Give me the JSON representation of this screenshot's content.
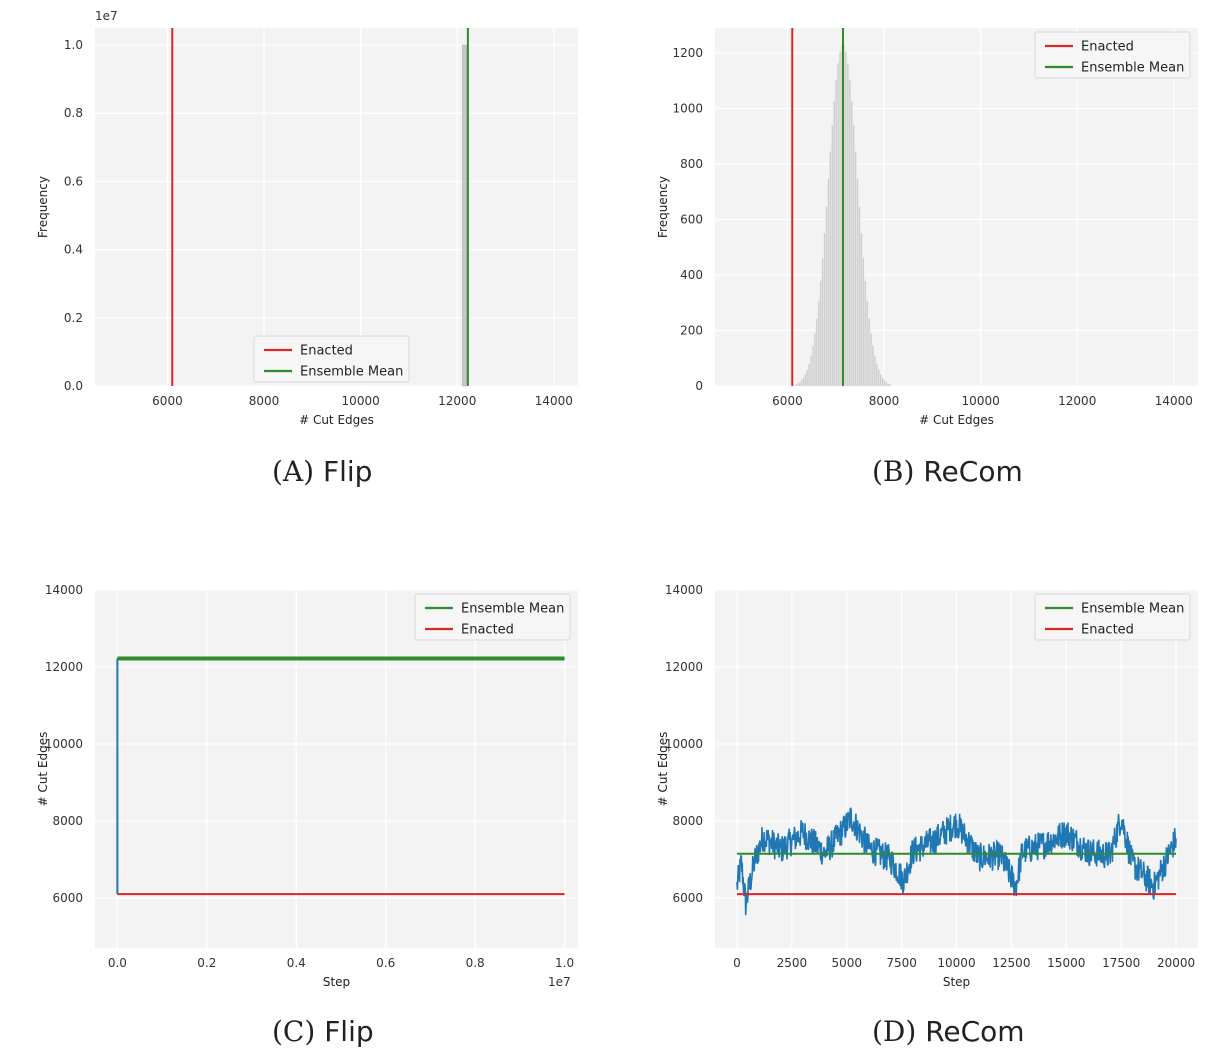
{
  "chart_data": [
    {
      "id": "A",
      "type": "histogram",
      "caption_label": "(A)",
      "caption_name": "Flip",
      "xlabel": "# Cut Edges",
      "ylabel": "Frequency",
      "xlim": [
        4500,
        14500
      ],
      "ylim": [
        0,
        1.05
      ],
      "y_offset_label": "1e7",
      "x_ticks": [
        6000,
        8000,
        10000,
        12000,
        14000
      ],
      "y_ticks": [
        0.0,
        0.2,
        0.4,
        0.6,
        0.8,
        1.0
      ],
      "y_tick_labels": [
        "0.0",
        "0.2",
        "0.4",
        "0.6",
        "0.8",
        "1.0"
      ],
      "bins": [
        {
          "x": 12150,
          "width": 90,
          "value": 1.0
        }
      ],
      "vlines": [
        {
          "name": "Enacted",
          "x": 6100,
          "color": "#d62728"
        },
        {
          "name": "Ensemble Mean",
          "x": 12220,
          "color": "#2e8b2e"
        }
      ],
      "legend": {
        "position": "lower-center",
        "entries": [
          {
            "label": "Enacted",
            "color": "#d62728"
          },
          {
            "label": "Ensemble Mean",
            "color": "#2e8b2e"
          }
        ]
      },
      "grid": true
    },
    {
      "id": "B",
      "type": "histogram",
      "caption_label": "(B)",
      "caption_name": "ReCom",
      "xlabel": "# Cut Edges",
      "ylabel": "Frequency",
      "xlim": [
        4500,
        14500
      ],
      "ylim": [
        0,
        1290
      ],
      "x_ticks": [
        6000,
        8000,
        10000,
        12000,
        14000
      ],
      "y_ticks": [
        0,
        200,
        400,
        600,
        800,
        1000,
        1200
      ],
      "y_tick_labels": [
        "0",
        "200",
        "400",
        "600",
        "800",
        "1000",
        "1200"
      ],
      "hist_normal": {
        "mean": 7150,
        "sd": 300,
        "peak": 1230,
        "x_min": 6150,
        "x_max": 8150,
        "bin_width": 40
      },
      "vlines": [
        {
          "name": "Enacted",
          "x": 6100,
          "color": "#d62728"
        },
        {
          "name": "Ensemble Mean",
          "x": 7150,
          "color": "#2e8b2e"
        }
      ],
      "legend": {
        "position": "top-right",
        "entries": [
          {
            "label": "Enacted",
            "color": "#d62728"
          },
          {
            "label": "Ensemble Mean",
            "color": "#2e8b2e"
          }
        ]
      },
      "grid": true
    },
    {
      "id": "C",
      "type": "line",
      "caption_label": "(C)",
      "caption_name": "Flip",
      "xlabel": "Step",
      "ylabel": "# Cut Edges",
      "xlim": [
        -0.05,
        1.03
      ],
      "ylim": [
        4700,
        14000
      ],
      "x_offset_label": "1e7",
      "x_ticks": [
        0.0,
        0.2,
        0.4,
        0.6,
        0.8,
        1.0
      ],
      "x_tick_labels": [
        "0.0",
        "0.2",
        "0.4",
        "0.6",
        "0.8",
        "1.0"
      ],
      "y_ticks": [
        6000,
        8000,
        10000,
        12000,
        14000
      ],
      "y_tick_labels": [
        "6000",
        "8000",
        "10000",
        "12000",
        "14000"
      ],
      "series": [
        {
          "name": "",
          "color": "#1f77b4",
          "x": [
            0.0,
            0.0,
            0.003,
            1.0
          ],
          "y": [
            6100,
            12200,
            12220,
            12220
          ]
        }
      ],
      "hlines": [
        {
          "name": "Ensemble Mean",
          "y": 12220,
          "x_range": [
            0.0,
            1.0
          ],
          "color": "#2e8b2e"
        },
        {
          "name": "Enacted",
          "y": 6100,
          "x_range": [
            0.0,
            1.0
          ],
          "color": "#d62728"
        }
      ],
      "legend": {
        "position": "top-right",
        "entries": [
          {
            "label": "Ensemble Mean",
            "color": "#2e8b2e"
          },
          {
            "label": "Enacted",
            "color": "#d62728"
          }
        ]
      },
      "grid": true
    },
    {
      "id": "D",
      "type": "line",
      "caption_label": "(D)",
      "caption_name": "ReCom",
      "xlabel": "Step",
      "ylabel": "# Cut Edges",
      "xlim": [
        -1000,
        21000
      ],
      "ylim": [
        4700,
        14000
      ],
      "x_ticks": [
        0,
        2500,
        5000,
        7500,
        10000,
        12500,
        15000,
        17500,
        20000
      ],
      "x_tick_labels": [
        "0",
        "2500",
        "5000",
        "7500",
        "10000",
        "12500",
        "15000",
        "17500",
        "20000"
      ],
      "y_ticks": [
        6000,
        8000,
        10000,
        12000,
        14000
      ],
      "y_tick_labels": [
        "6000",
        "8000",
        "10000",
        "12000",
        "14000"
      ],
      "series": [
        {
          "name": "",
          "color": "#1f77b4",
          "x": [
            0,
            200,
            400,
            800,
            1200,
            2000,
            3000,
            4000,
            5000,
            5200,
            6000,
            7000,
            7600,
            8000,
            9000,
            10000,
            11000,
            12000,
            12700,
            13000,
            14000,
            15000,
            16000,
            17000,
            17500,
            18000,
            19000,
            20000
          ],
          "y": [
            6300,
            6900,
            5850,
            6950,
            7600,
            7250,
            7700,
            7150,
            7900,
            8100,
            7300,
            7000,
            6450,
            7200,
            7500,
            7950,
            7050,
            7100,
            6300,
            7200,
            7400,
            7700,
            7200,
            7100,
            8100,
            6900,
            6300,
            7550
          ],
          "noise": 380
        }
      ],
      "hlines": [
        {
          "name": "Ensemble Mean",
          "y": 7150,
          "x_range": [
            0,
            20000
          ],
          "color": "#2e8b2e"
        },
        {
          "name": "Enacted",
          "y": 6100,
          "x_range": [
            0,
            20000
          ],
          "color": "#d62728"
        }
      ],
      "legend": {
        "position": "top-right",
        "entries": [
          {
            "label": "Ensemble Mean",
            "color": "#2e8b2e"
          },
          {
            "label": "Enacted",
            "color": "#d62728"
          }
        ]
      },
      "grid": true
    }
  ]
}
